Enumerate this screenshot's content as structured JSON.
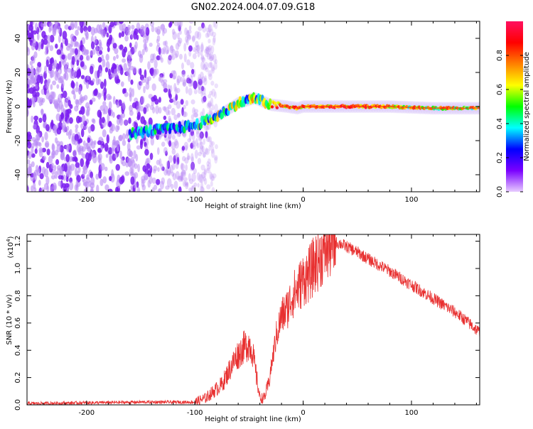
{
  "title": "GN02.2024.004.07.09.G18",
  "chart_data": [
    {
      "type": "heatmap",
      "xlabel": "Height of straight line (km)",
      "ylabel": "Frequency (Hz)",
      "xlim": [
        -255,
        163
      ],
      "ylim": [
        -50,
        50
      ],
      "xticks": [
        -200,
        -100,
        0,
        100
      ],
      "yticks": [
        -40,
        -20,
        0,
        20,
        40
      ],
      "colorbar": {
        "label": "Normalized spectral amplitude",
        "range": [
          0,
          1
        ],
        "ticks": [
          "0.0",
          "0.2",
          "0.4",
          "0.6",
          "0.8"
        ],
        "tick_values": [
          0,
          0.2,
          0.4,
          0.6,
          0.8
        ],
        "colors": [
          "#e8ccff",
          "#7a00ff",
          "#0000ff",
          "#00ffff",
          "#00ff00",
          "#ffff00",
          "#ff8000",
          "#ff0000",
          "#ff1060"
        ]
      },
      "ridge": {
        "x": [
          -160,
          -140,
          -120,
          -100,
          -80,
          -60,
          -45,
          -30,
          -15,
          -5,
          0,
          40,
          80,
          120,
          163
        ],
        "y": [
          -16,
          -14,
          -13,
          -11,
          -6,
          2,
          5,
          1,
          0,
          -1,
          0,
          0,
          0,
          -1,
          -1
        ]
      },
      "noise_region": [
        -255,
        -95
      ]
    },
    {
      "type": "line",
      "xlabel": "Height of straight line (km)",
      "ylabel": "SNR (10 * v/v)",
      "multiplier": "(x10",
      "multiplier_exp": "4",
      "multiplier_close": ")",
      "xlim": [
        -255,
        163
      ],
      "ylim": [
        0,
        1.25
      ],
      "xticks": [
        -200,
        -100,
        0,
        100
      ],
      "yticks": [
        "0.0",
        "0.2",
        "0.4",
        "0.6",
        "0.8",
        "1.0",
        "1.2"
      ],
      "ytick_values": [
        0,
        0.2,
        0.4,
        0.6,
        0.8,
        1.0,
        1.2
      ],
      "color": "#e83030",
      "x": [
        -255,
        -150,
        -100,
        -90,
        -75,
        -62,
        -55,
        -50,
        -47,
        -43,
        -40,
        -36,
        -32,
        -28,
        -25,
        -20,
        -15,
        -10,
        -5,
        0,
        5,
        10,
        15,
        20,
        25,
        30,
        35,
        40,
        50,
        60,
        80,
        100,
        120,
        140,
        150,
        163
      ],
      "values": [
        0.01,
        0.02,
        0.02,
        0.05,
        0.15,
        0.35,
        0.42,
        0.45,
        0.4,
        0.2,
        0.05,
        0.05,
        0.15,
        0.35,
        0.5,
        0.65,
        0.7,
        0.8,
        0.85,
        0.92,
        0.95,
        1.02,
        1.08,
        1.13,
        1.17,
        1.19,
        1.18,
        1.16,
        1.12,
        1.07,
        0.98,
        0.88,
        0.78,
        0.68,
        0.62,
        0.53
      ]
    }
  ]
}
